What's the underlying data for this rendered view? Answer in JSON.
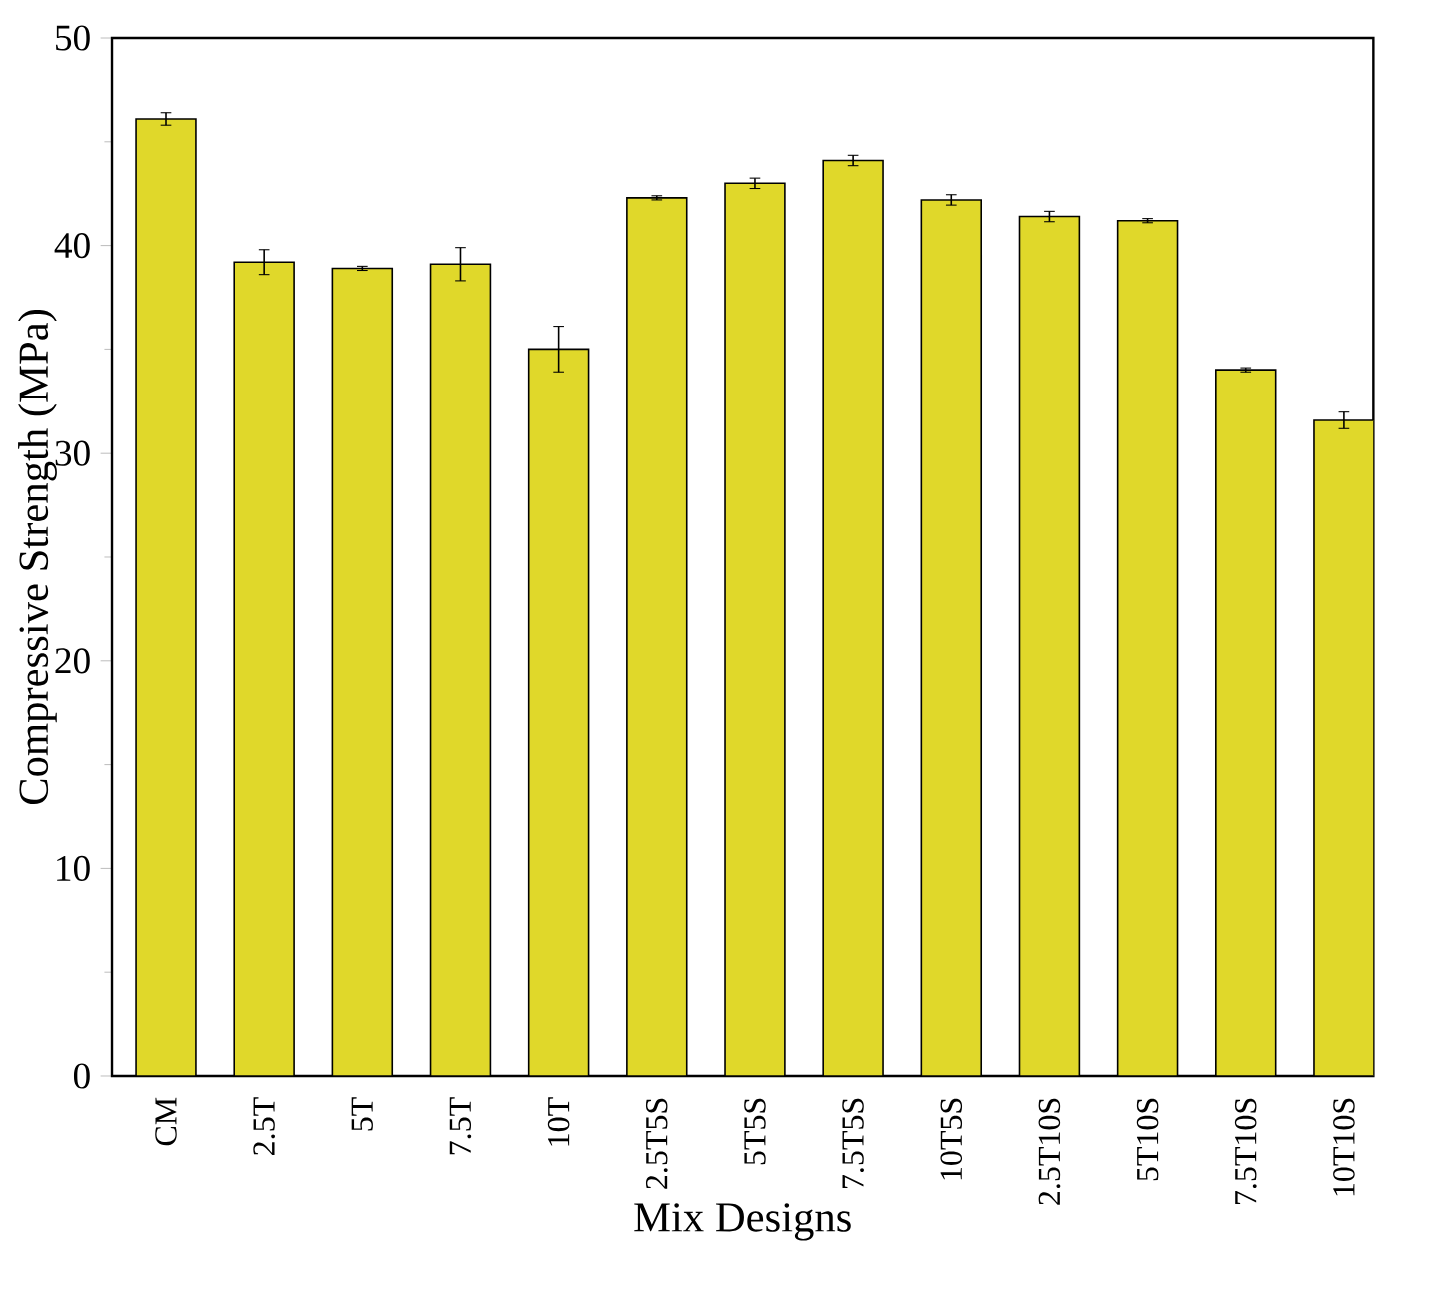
{
  "chart_data": {
    "type": "bar",
    "xlabel": "Mix Designs",
    "ylabel": "Compressive Strength (MPa)",
    "categories": [
      "CM",
      "2.5T",
      "5T",
      "7.5T",
      "10T",
      "2.5T5S",
      "5T5S",
      "7.5T5S",
      "10T5S",
      "2.5T10S",
      "5T10S",
      "7.5T10S",
      "10T10S"
    ],
    "values": [
      46.1,
      39.2,
      38.9,
      39.1,
      35.0,
      42.3,
      43.0,
      44.1,
      42.2,
      41.4,
      41.2,
      34.0,
      31.6
    ],
    "errors": [
      0.3,
      0.6,
      0.1,
      0.8,
      1.1,
      0.1,
      0.25,
      0.25,
      0.25,
      0.25,
      0.1,
      0.1,
      0.4
    ],
    "color": "#e0d82a",
    "ylim": [
      0,
      50
    ],
    "yticks": [
      0,
      10,
      20,
      30,
      40,
      50
    ],
    "grid": false
  }
}
